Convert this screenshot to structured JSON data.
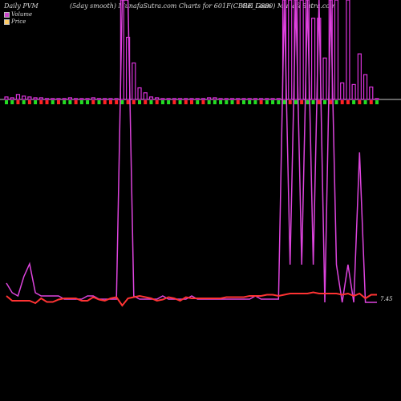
{
  "header": {
    "label_left": "Daily PVM",
    "label_mid": "(5day smooth) MunafaSutra.com Charts for 601F(CBRE_G880) MunafaSutra.com",
    "label_right": "Gei Loan"
  },
  "legend": {
    "volume_label": "Volume",
    "price_label": "Price",
    "volume_color": "#cc44cc",
    "price_color": "#ff3333"
  },
  "chart_data": {
    "type": "bar",
    "x_count": 65,
    "volume": [
      3,
      2,
      6,
      4,
      3,
      2,
      2,
      1,
      1,
      1,
      1,
      2,
      1,
      1,
      1,
      2,
      1,
      1,
      1,
      1,
      120,
      75,
      44,
      14,
      8,
      3,
      2,
      1,
      1,
      1,
      1,
      1,
      1,
      1,
      1,
      2,
      2,
      1,
      1,
      1,
      1,
      1,
      1,
      1,
      1,
      1,
      1,
      1,
      120,
      120,
      120,
      120,
      120,
      98,
      98,
      50,
      120,
      120,
      20,
      120,
      18,
      55,
      30,
      15,
      1
    ],
    "volume_down": [
      0,
      0,
      1,
      0,
      1,
      0,
      1,
      1,
      0,
      1,
      0,
      0,
      1,
      0,
      0,
      1,
      0,
      1,
      1,
      1,
      0,
      1,
      1,
      0,
      1,
      0,
      1,
      0,
      0,
      1,
      0,
      1,
      1,
      0,
      1,
      0,
      0,
      0,
      0,
      0,
      1,
      0,
      0,
      0,
      1,
      0,
      0,
      0,
      0,
      1,
      0,
      1,
      0,
      0,
      1,
      0,
      1,
      0,
      1,
      1,
      0,
      1,
      0,
      1,
      0
    ],
    "volume_line": [
      6,
      3,
      2,
      8,
      12,
      3,
      2,
      2,
      2,
      2,
      1,
      1,
      1,
      1,
      2,
      2,
      1,
      1,
      1,
      1,
      3,
      2,
      2,
      1,
      1,
      1,
      1,
      2,
      1,
      1,
      1,
      1,
      2,
      1,
      1,
      1,
      1,
      1,
      1,
      1,
      1,
      1,
      1,
      2,
      1,
      1,
      1,
      1,
      0,
      0,
      0,
      0,
      0,
      0,
      0,
      0,
      0,
      0,
      0,
      0,
      0,
      0,
      0,
      0,
      0
    ],
    "price": [
      7.4,
      7.0,
      7.0,
      7.0,
      7.0,
      6.8,
      7.2,
      6.9,
      6.9,
      7.1,
      7.2,
      7.2,
      7.2,
      7.0,
      7.0,
      7.3,
      7.1,
      7.0,
      7.2,
      7.3,
      6.6,
      7.2,
      7.3,
      7.4,
      7.3,
      7.2,
      7.0,
      7.1,
      7.3,
      7.2,
      7.0,
      7.3,
      7.2,
      7.2,
      7.2,
      7.2,
      7.2,
      7.2,
      7.3,
      7.3,
      7.3,
      7.3,
      7.4,
      7.4,
      7.4,
      7.5,
      7.5,
      7.4,
      7.5,
      7.6,
      7.6,
      7.6,
      7.6,
      7.7,
      7.6,
      7.6,
      7.6,
      7.6,
      7.5,
      7.6,
      7.4,
      7.6,
      7.2,
      7.5,
      7.5
    ],
    "ytick_label": "7.45",
    "grid": false
  }
}
